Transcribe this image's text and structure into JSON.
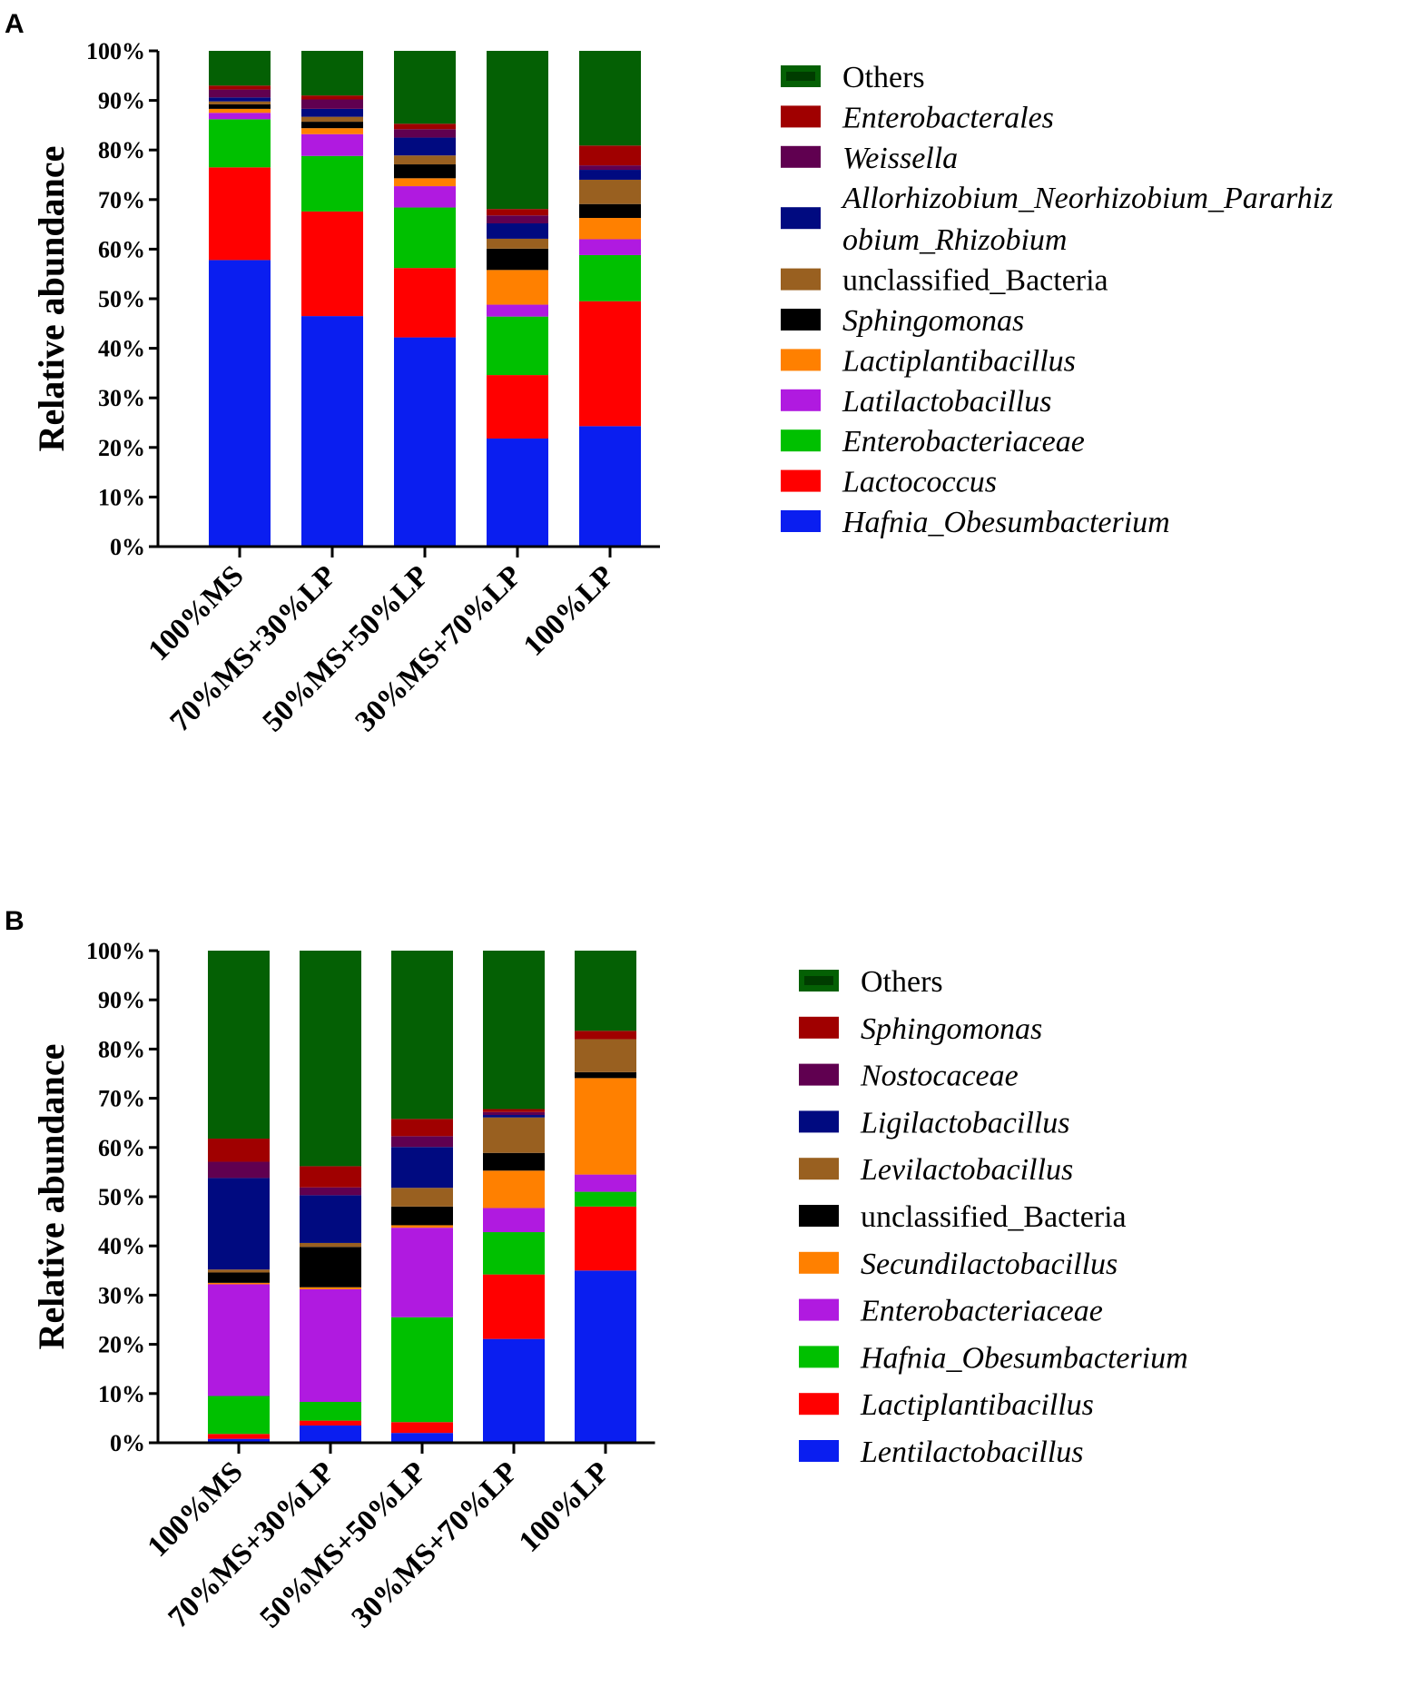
{
  "chart_data": [
    {
      "panel": "A",
      "type": "bar",
      "stacked": true,
      "ylabel": "Relative abundance",
      "ylim": [
        0,
        100
      ],
      "yticks": [
        "0%",
        "10%",
        "20%",
        "30%",
        "40%",
        "50%",
        "60%",
        "70%",
        "80%",
        "90%",
        "100%"
      ],
      "categories": [
        "100%MS",
        "70%MS+30%LP",
        "50%MS+50%LP",
        "30%MS+70%LP",
        "100%LP"
      ],
      "series": [
        {
          "name": "Hafnia_Obesumbacterium",
          "italic": true,
          "color": "#0a1ef0",
          "values": [
            57.8,
            46.5,
            42.2,
            21.8,
            24.3
          ]
        },
        {
          "name": "Lactococcus",
          "italic": true,
          "color": "#ff0000",
          "values": [
            18.7,
            21.1,
            14.0,
            12.8,
            25.2
          ]
        },
        {
          "name": "Enterobacteriaceae",
          "italic": true,
          "color": "#00c000",
          "values": [
            9.7,
            11.2,
            12.2,
            11.8,
            9.3
          ]
        },
        {
          "name": "Latilactobacillus",
          "italic": true,
          "color": "#b01ae0",
          "values": [
            1.3,
            4.4,
            4.3,
            2.4,
            3.2
          ]
        },
        {
          "name": "Lactiplantibacillus",
          "italic": true,
          "color": "#ff8000",
          "values": [
            0.8,
            1.2,
            1.6,
            7.0,
            4.3
          ]
        },
        {
          "name": "Sphingomonas",
          "italic": true,
          "color": "#000000",
          "values": [
            0.9,
            1.3,
            2.8,
            4.3,
            2.8
          ]
        },
        {
          "name": "unclassified_Bacteria",
          "italic": false,
          "color": "#996020",
          "values": [
            0.6,
            1.0,
            1.8,
            2.0,
            4.9
          ]
        },
        {
          "name": "Allorhizobium_Neorhizobium_Pararhizobium_Rhizobium",
          "italic": true,
          "color": "#000a80",
          "values": [
            0.8,
            1.6,
            3.6,
            3.1,
            2.0
          ]
        },
        {
          "name": "Weissella",
          "italic": true,
          "color": "#600050",
          "values": [
            1.6,
            1.9,
            1.7,
            1.6,
            0.9
          ]
        },
        {
          "name": "Enterobacterales",
          "italic": true,
          "color": "#a00000",
          "values": [
            0.8,
            0.8,
            1.1,
            1.3,
            4.0
          ]
        },
        {
          "name": "Others",
          "italic": false,
          "color": "#046004",
          "values": [
            7.0,
            9.0,
            14.7,
            31.9,
            19.1
          ]
        }
      ],
      "legend_order": [
        "Others",
        "Enterobacterales",
        "Weissella",
        "Allorhizobium_Neorhizobium_Pararhizobium_Rhizobium",
        "unclassified_Bacteria",
        "Sphingomonas",
        "Lactiplantibacillus",
        "Latilactobacillus",
        "Enterobacteriaceae",
        "Lactococcus",
        "Hafnia_Obesumbacterium"
      ],
      "legend_lines": {
        "Allorhizobium_Neorhizobium_Pararhizobium_Rhizobium": [
          "Allorhizobium_Neorhizobium_Pararhiz",
          "obium_Rhizobium"
        ]
      }
    },
    {
      "panel": "B",
      "type": "bar",
      "stacked": true,
      "ylabel": "Relative abundance",
      "ylim": [
        0,
        100
      ],
      "yticks": [
        "0%",
        "10%",
        "20%",
        "30%",
        "40%",
        "50%",
        "60%",
        "70%",
        "80%",
        "90%",
        "100%"
      ],
      "categories": [
        "100%MS",
        "70%MS+30%LP",
        "50%MS+50%LP",
        "30%MS+70%LP",
        "100%LP"
      ],
      "series": [
        {
          "name": "Lentilactobacillus",
          "italic": true,
          "color": "#0a1ef0",
          "values": [
            0.8,
            3.5,
            2.0,
            21.1,
            35.0
          ]
        },
        {
          "name": "Lactiplantibacillus",
          "italic": true,
          "color": "#ff0000",
          "values": [
            1.0,
            1.0,
            2.2,
            13.1,
            13.0
          ]
        },
        {
          "name": "Hafnia_Obesumbacterium",
          "italic": true,
          "color": "#00c000",
          "values": [
            7.7,
            3.8,
            21.3,
            8.6,
            3.0
          ]
        },
        {
          "name": "Enterobacteriaceae",
          "italic": true,
          "color": "#b01ae0",
          "values": [
            22.7,
            22.9,
            18.2,
            4.9,
            3.5
          ]
        },
        {
          "name": "Secundilactobacillus",
          "italic": true,
          "color": "#ff8000",
          "values": [
            0.3,
            0.4,
            0.5,
            7.6,
            19.6
          ]
        },
        {
          "name": "unclassified_Bacteria",
          "italic": false,
          "color": "#000000",
          "values": [
            2.1,
            8.2,
            3.8,
            3.6,
            1.2
          ]
        },
        {
          "name": "Levilactobacillus",
          "italic": true,
          "color": "#996020",
          "values": [
            0.6,
            0.8,
            3.8,
            7.2,
            6.7
          ]
        },
        {
          "name": "Ligilactobacillus",
          "italic": true,
          "color": "#000a80",
          "values": [
            18.6,
            9.7,
            8.3,
            0.5,
            0.0
          ]
        },
        {
          "name": "Nostocaceae",
          "italic": true,
          "color": "#600050",
          "values": [
            3.3,
            1.6,
            2.2,
            0.6,
            0.0
          ]
        },
        {
          "name": "Sphingomonas",
          "italic": true,
          "color": "#a00000",
          "values": [
            4.7,
            4.3,
            3.5,
            0.6,
            1.7
          ]
        },
        {
          "name": "Others",
          "italic": false,
          "color": "#046004",
          "values": [
            38.2,
            43.8,
            34.2,
            32.2,
            16.3
          ]
        }
      ],
      "legend_order": [
        "Others",
        "Sphingomonas",
        "Nostocaceae",
        "Ligilactobacillus",
        "Levilactobacillus",
        "unclassified_Bacteria",
        "Secundilactobacillus",
        "Enterobacteriaceae",
        "Hafnia_Obesumbacterium",
        "Lactiplantibacillus",
        "Lentilactobacillus"
      ],
      "legend_lines": {}
    }
  ]
}
